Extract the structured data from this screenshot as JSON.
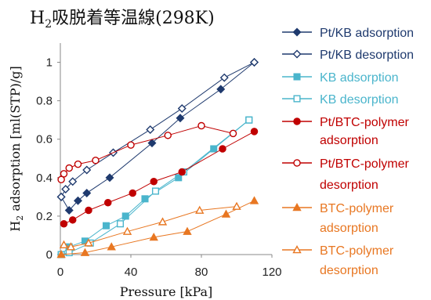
{
  "chart_data": {
    "type": "line",
    "title": {
      "pre": "H",
      "sub": "2",
      "post": "吸脱着等温線(298K)"
    },
    "xlabel": "Pressure [kPa]",
    "ylabel": {
      "pre": "H",
      "sub": "2",
      "post": " adsorption [ml(STP)/g]"
    },
    "xlim": [
      0,
      120
    ],
    "ylim": [
      0,
      1.1
    ],
    "xticks": [
      0,
      40,
      80,
      120
    ],
    "yticks": [
      0,
      0.2,
      0.4,
      0.6,
      0.8,
      1
    ],
    "grid": false,
    "legend_position": "right",
    "series": [
      {
        "name": "Pt/KB adsorption",
        "color": "#1f3a6e",
        "marker": "diamond",
        "filled": true,
        "x": [
          0.5,
          5,
          10,
          15,
          28,
          52,
          68,
          91,
          110
        ],
        "y": [
          0.3,
          0.23,
          0.28,
          0.32,
          0.4,
          0.58,
          0.71,
          0.86,
          1.0
        ]
      },
      {
        "name": "Pt/KB desorption",
        "color": "#1f3a6e",
        "marker": "diamond",
        "filled": false,
        "x": [
          110,
          93,
          69,
          51,
          30,
          15,
          7,
          3,
          0.5
        ],
        "y": [
          1.0,
          0.92,
          0.76,
          0.65,
          0.53,
          0.44,
          0.38,
          0.34,
          0.3
        ]
      },
      {
        "name": "KB adsorption",
        "color": "#4ab5cc",
        "marker": "square",
        "filled": true,
        "x": [
          0.5,
          5,
          14,
          26,
          37,
          48,
          67,
          87,
          107
        ],
        "y": [
          0.0,
          0.04,
          0.07,
          0.15,
          0.2,
          0.29,
          0.4,
          0.55,
          0.7
        ]
      },
      {
        "name": "KB desorption",
        "color": "#4ab5cc",
        "marker": "square",
        "filled": false,
        "x": [
          107,
          70,
          54,
          34,
          17,
          5,
          0.5
        ],
        "y": [
          0.7,
          0.43,
          0.33,
          0.16,
          0.06,
          0.01,
          0.0
        ]
      },
      {
        "name": "Pt/BTC-polymer adsorption",
        "color": "#c00000",
        "marker": "circle",
        "filled": true,
        "x": [
          2,
          7,
          16,
          27,
          41,
          53,
          69,
          92,
          110
        ],
        "y": [
          0.16,
          0.18,
          0.23,
          0.27,
          0.32,
          0.38,
          0.43,
          0.55,
          0.64
        ]
      },
      {
        "name": "Pt/BTC-polymer desorption",
        "color": "#c00000",
        "marker": "circle",
        "filled": false,
        "x": [
          98,
          80,
          61,
          40,
          20,
          10,
          5,
          2,
          0.5
        ],
        "y": [
          0.63,
          0.67,
          0.62,
          0.57,
          0.49,
          0.47,
          0.45,
          0.42,
          0.39
        ]
      },
      {
        "name": "BTC-polymer adsorption",
        "color": "#e87722",
        "marker": "triangle",
        "filled": true,
        "x": [
          0.5,
          14,
          29,
          53,
          72,
          94,
          110
        ],
        "y": [
          0.0,
          0.01,
          0.04,
          0.09,
          0.12,
          0.21,
          0.28
        ]
      },
      {
        "name": "BTC-polymer desorption",
        "color": "#e87722",
        "marker": "triangle",
        "filled": false,
        "x": [
          100,
          79,
          58,
          38,
          16,
          6,
          2
        ],
        "y": [
          0.25,
          0.23,
          0.17,
          0.12,
          0.06,
          0.04,
          0.05
        ]
      }
    ]
  }
}
